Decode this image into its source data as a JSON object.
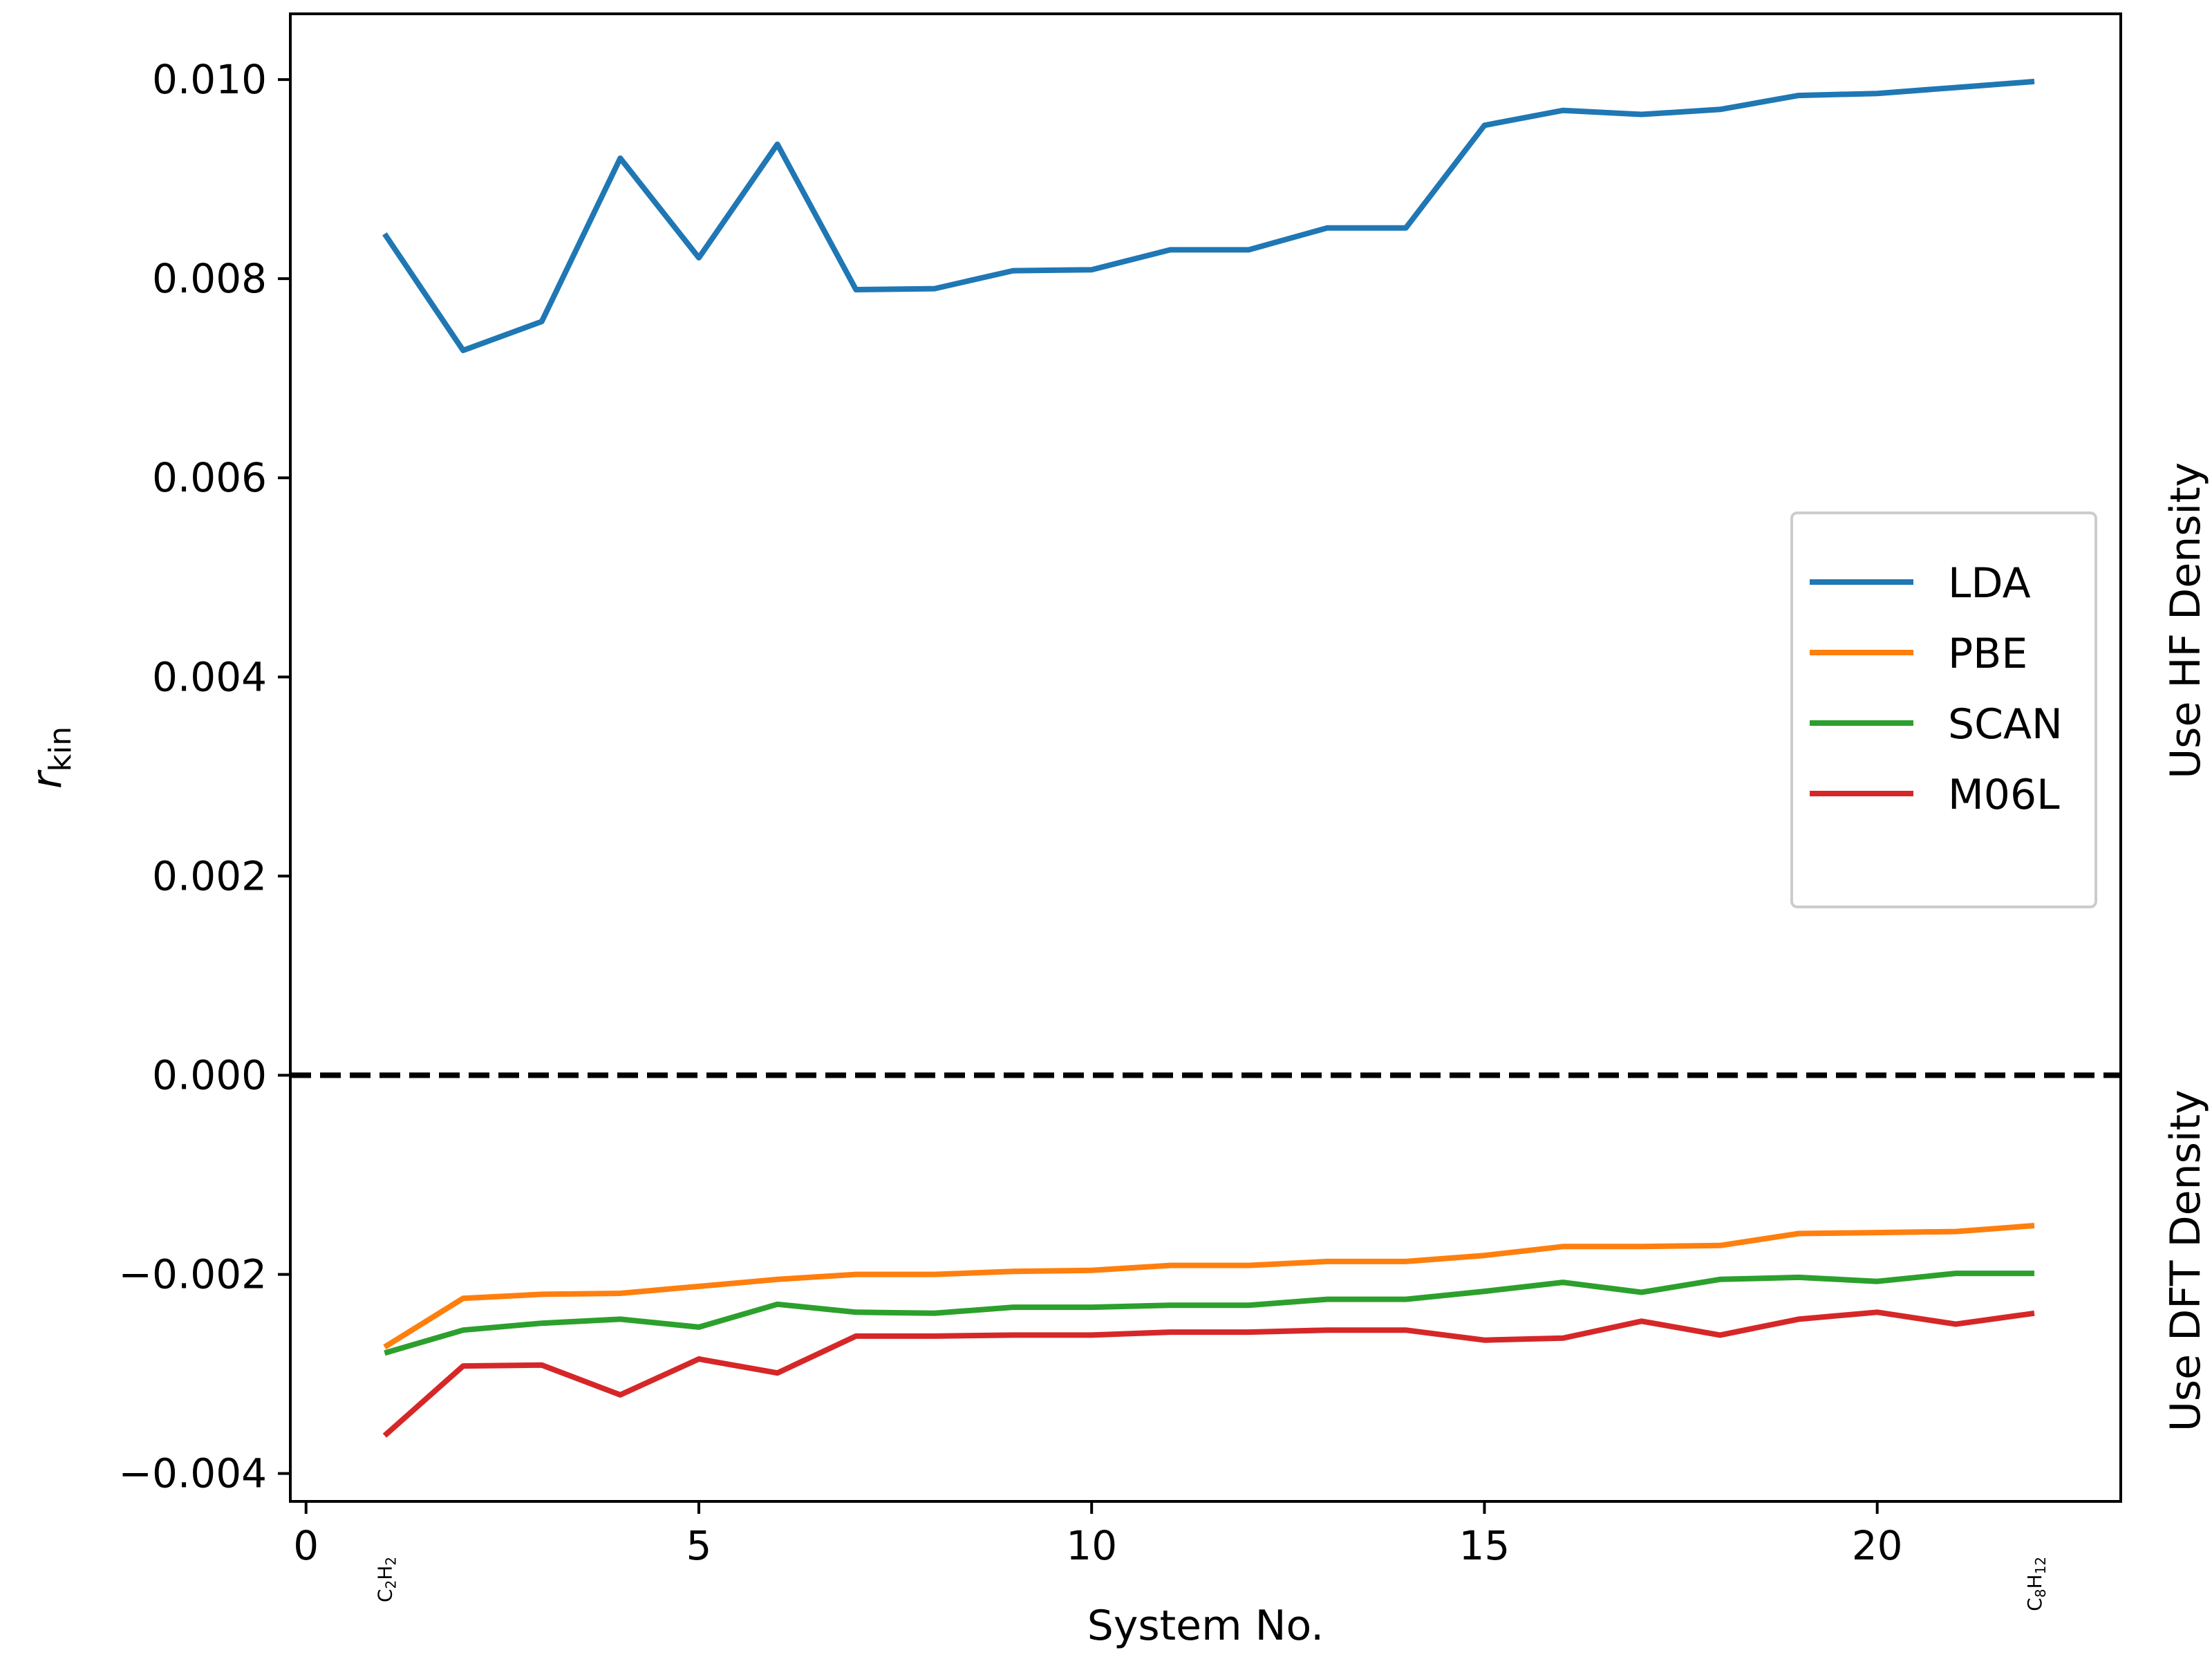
{
  "chart_data": {
    "type": "line",
    "xlabel": "System No.",
    "ylabel": "r",
    "ylabel_sub": "kin",
    "xlim": [
      -0.2,
      23.1
    ],
    "ylim": [
      -0.00428,
      0.01066
    ],
    "xticks": [
      0,
      5,
      10,
      15,
      20
    ],
    "xtick_labels": [
      "0",
      "5",
      "10",
      "15",
      "20"
    ],
    "yticks": [
      0.01,
      0.008,
      0.006,
      0.004,
      0.002,
      0.0,
      -0.002,
      -0.004
    ],
    "ytick_labels": [
      "0.010",
      "0.008",
      "0.006",
      "0.004",
      "0.002",
      "0.000",
      "−0.002",
      "−0.004"
    ],
    "category_annotations": [
      {
        "x": 1,
        "base": "C",
        "sub1": "2",
        "mid": "H",
        "sub2": "2"
      },
      {
        "x": 22,
        "base": "C",
        "sub1": "8",
        "mid": "H",
        "sub2": "12"
      }
    ],
    "right_labels": {
      "upper": "Use HF Density",
      "lower": "Use DFT Density"
    },
    "reference_line": {
      "y": 0.0,
      "style": "dashed",
      "color": "#000000"
    },
    "legend_placement": "center-right",
    "grid": false,
    "x": [
      1,
      2,
      3,
      4,
      5,
      6,
      7,
      8,
      9,
      10,
      11,
      12,
      13,
      14,
      15,
      16,
      17,
      18,
      19,
      20,
      21,
      22
    ],
    "series": [
      {
        "name": "LDA",
        "color": "#1f77b4",
        "values": [
          0.00845,
          0.00728,
          0.00757,
          0.00921,
          0.00821,
          0.00935,
          0.00789,
          0.0079,
          0.00808,
          0.00809,
          0.00829,
          0.00829,
          0.00851,
          0.00851,
          0.00954,
          0.00969,
          0.00965,
          0.0097,
          0.00984,
          0.00986,
          0.00992,
          0.00998
        ]
      },
      {
        "name": "PBE",
        "color": "#ff7f0e",
        "values": [
          -0.00273,
          -0.00224,
          -0.0022,
          -0.00219,
          -0.00212,
          -0.00205,
          -0.002,
          -0.002,
          -0.00197,
          -0.00196,
          -0.00191,
          -0.00191,
          -0.00187,
          -0.00187,
          -0.00181,
          -0.00172,
          -0.00172,
          -0.00171,
          -0.00159,
          -0.00158,
          -0.00157,
          -0.00151
        ]
      },
      {
        "name": "SCAN",
        "color": "#2ca02c",
        "values": [
          -0.00279,
          -0.00256,
          -0.00249,
          -0.00245,
          -0.00253,
          -0.0023,
          -0.00238,
          -0.00239,
          -0.00233,
          -0.00233,
          -0.00231,
          -0.00231,
          -0.00225,
          -0.00225,
          -0.00217,
          -0.00208,
          -0.00218,
          -0.00205,
          -0.00203,
          -0.00207,
          -0.00199,
          -0.00199
        ]
      },
      {
        "name": "M06L",
        "color": "#d62728",
        "values": [
          -0.00362,
          -0.00292,
          -0.00291,
          -0.00321,
          -0.00285,
          -0.00299,
          -0.00262,
          -0.00262,
          -0.00261,
          -0.00261,
          -0.00258,
          -0.00258,
          -0.00256,
          -0.00256,
          -0.00266,
          -0.00264,
          -0.00247,
          -0.00261,
          -0.00245,
          -0.00238,
          -0.0025,
          -0.00239
        ]
      }
    ]
  }
}
